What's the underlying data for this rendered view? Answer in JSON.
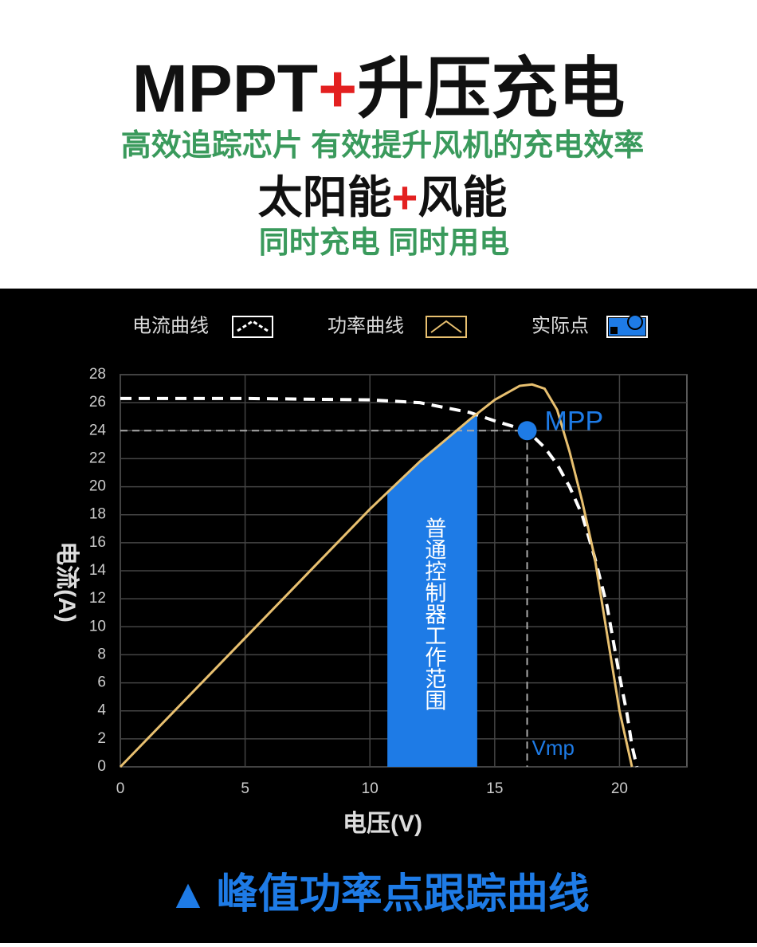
{
  "header": {
    "title": [
      "MPPT",
      "+",
      "升压充电"
    ],
    "subtitle": "高效追踪芯片  有效提升风机的充电效率",
    "line2": [
      "太阳能",
      "+",
      "风能"
    ],
    "line3": "同时充电 同时用电"
  },
  "chart_data": {
    "type": "line",
    "x_label": "电压(V)",
    "y_label": "电流(A)",
    "xlim": [
      0,
      22.7
    ],
    "xticks": [
      0,
      5,
      10,
      15,
      20
    ],
    "ylim": [
      0,
      28
    ],
    "yticks": [
      0,
      2,
      4,
      6,
      8,
      10,
      12,
      14,
      16,
      18,
      20,
      22,
      24,
      26,
      28
    ],
    "grid": true,
    "series": [
      {
        "name": "电流曲线",
        "color": "#ffffff",
        "dashed": true,
        "x": [
          0,
          5,
          10,
          12,
          14,
          15,
          16.3,
          17,
          17.5,
          18,
          18.5,
          19,
          19.5,
          20,
          20.3,
          20.5,
          20.7
        ],
        "values": [
          26.3,
          26.3,
          26.2,
          26,
          25.3,
          24.7,
          24,
          22.8,
          21.6,
          20,
          18,
          15,
          11.5,
          6.5,
          3.8,
          1.5,
          0
        ]
      },
      {
        "name": "功率曲线",
        "color": "#e8c070",
        "dashed": false,
        "x": [
          0,
          5,
          10,
          12,
          14,
          15,
          16,
          16.5,
          17,
          17.5,
          18,
          18.5,
          19,
          19.5,
          20,
          20.5
        ],
        "values": [
          0,
          9.2,
          18.4,
          21.8,
          24.8,
          26.2,
          27.2,
          27.3,
          27,
          25.5,
          22.5,
          19,
          15,
          9.5,
          4,
          0
        ]
      }
    ],
    "mpp": {
      "name": "实际点",
      "label": "MPP",
      "vlabel": "Vmp",
      "x": 16.3,
      "y": 24,
      "color": "#1e7be6"
    },
    "range": {
      "label": "普通控制器工作范围",
      "x": [
        10.7,
        14.3
      ],
      "color": "#1e7be6"
    }
  },
  "footer": {
    "icon": "▲",
    "text": "峰值功率点跟踪曲线"
  }
}
